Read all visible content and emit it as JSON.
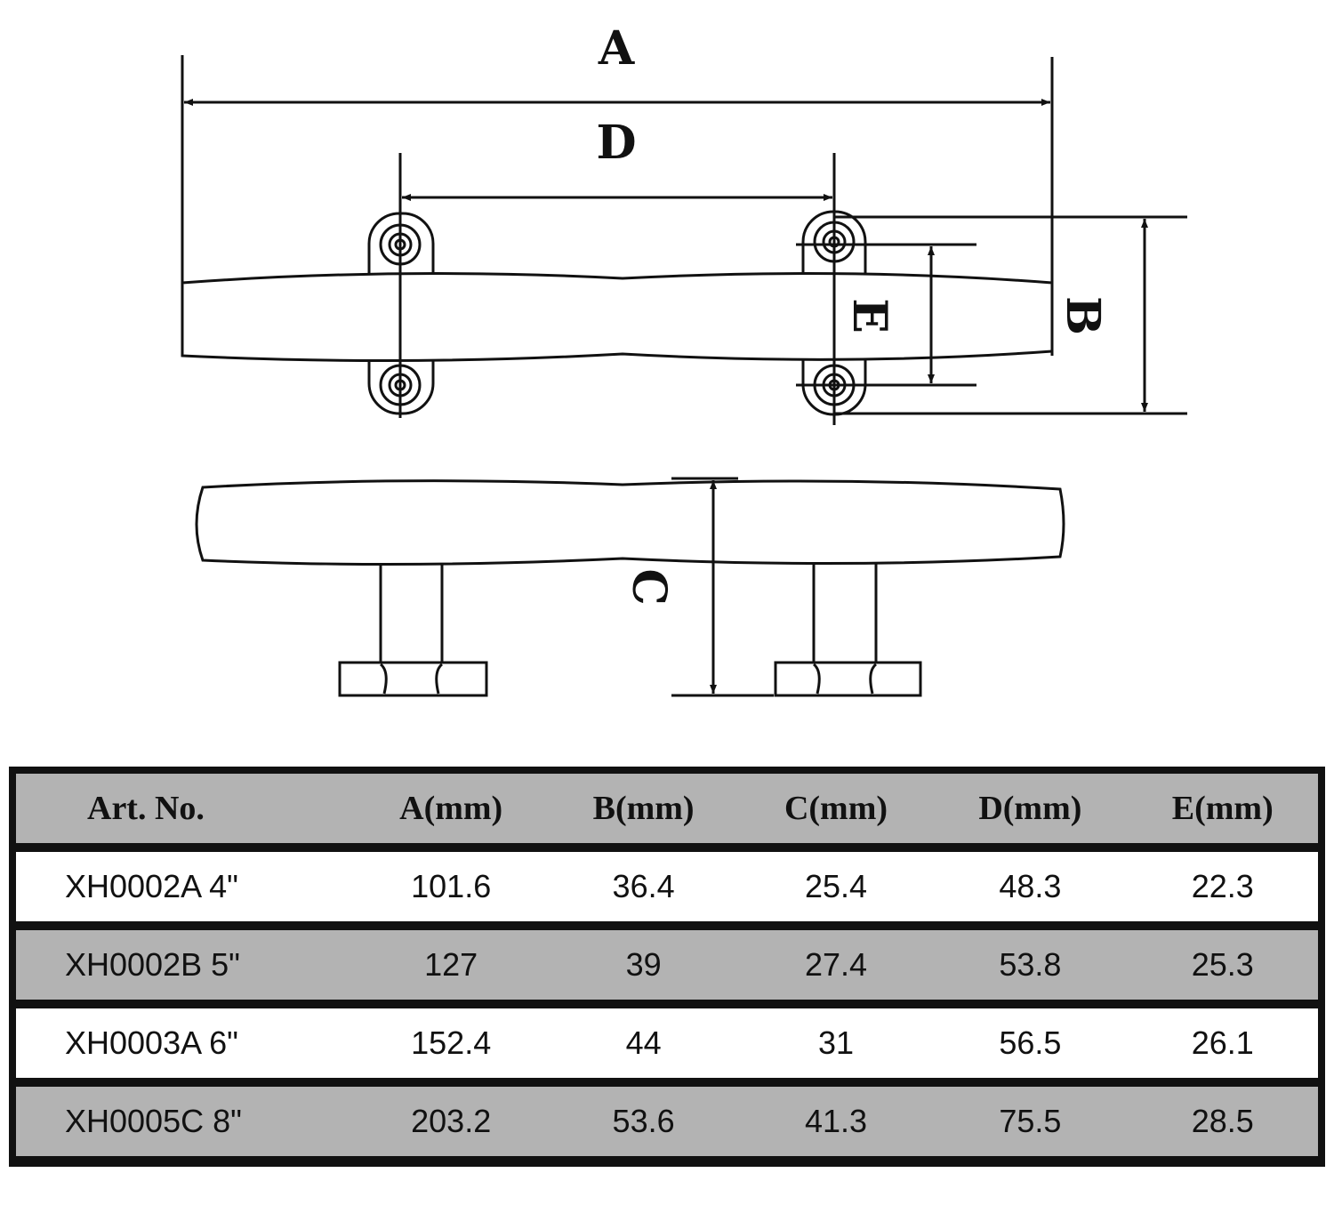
{
  "diagram": {
    "labels": {
      "A": "A",
      "B": "B",
      "C": "C",
      "D": "D",
      "E": "E"
    }
  },
  "table": {
    "headers": [
      "Art. No.",
      "A(mm)",
      "B(mm)",
      "C(mm)",
      "D(mm)",
      "E(mm)"
    ],
    "rows": [
      [
        "XH0002A 4\"",
        "101.6",
        "36.4",
        "25.4",
        "48.3",
        "22.3"
      ],
      [
        "XH0002B 5\"",
        "127",
        "39",
        "27.4",
        "53.8",
        "25.3"
      ],
      [
        "XH0003A 6\"",
        "152.4",
        "44",
        "31",
        "56.5",
        "26.1"
      ],
      [
        "XH0005C 8\"",
        "203.2",
        "53.6",
        "41.3",
        "75.5",
        "28.5"
      ]
    ]
  }
}
